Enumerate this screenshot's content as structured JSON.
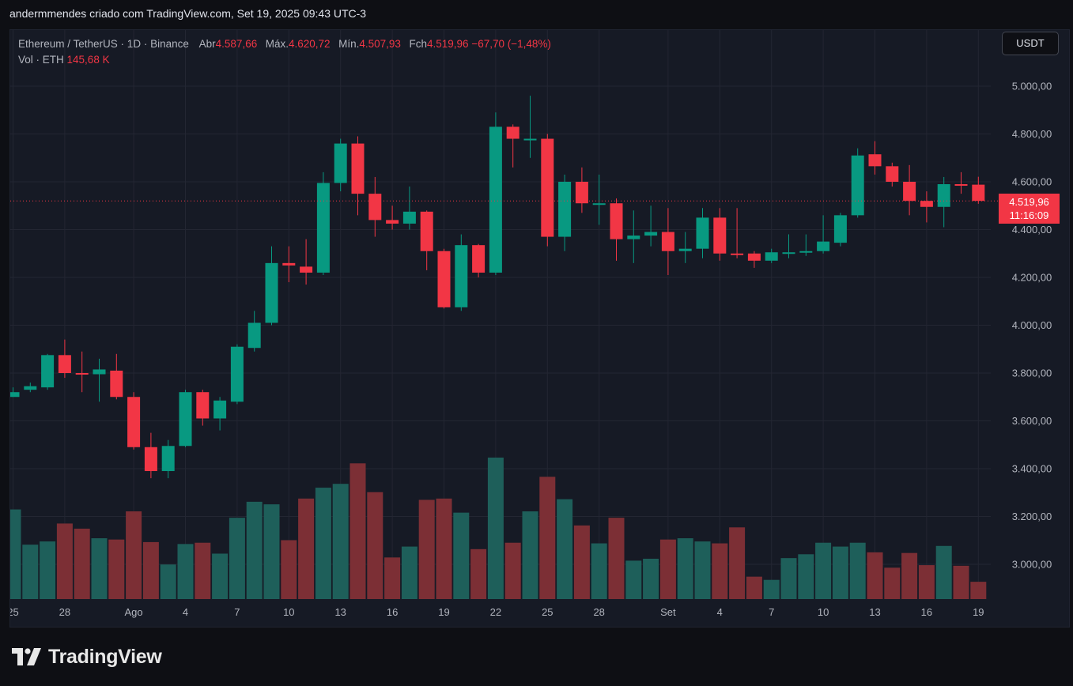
{
  "header": {
    "text": "andermmendes criado com TradingView.com, Set 19, 2025 09:43 UTC-3"
  },
  "legend": {
    "symbol": "Ethereum / TetherUS · 1D · Binance",
    "open_label": "Abr",
    "open": "4.587,66",
    "high_label": "Máx.",
    "high": "4.620,72",
    "low_label": "Mín.",
    "low": "4.507,93",
    "close_label": "Fch",
    "close": "4.519,96",
    "change": "−67,70 (−1,48%)",
    "volume_label": "Vol · ETH",
    "volume": "145,68 K"
  },
  "currency_button": "USDT",
  "price_tag": {
    "price": "4.519,96",
    "countdown": "11:16:09"
  },
  "brand": {
    "name": "TradingView"
  },
  "colors": {
    "up": "#089981",
    "down": "#f23645",
    "vol_up": "#1e5f5a",
    "vol_down": "#7c2f35",
    "background": "#161a25",
    "grid": "#232632"
  },
  "chart_data": {
    "type": "candlestick",
    "title": "Ethereum / TetherUS · 1D · Binance",
    "y_axis": {
      "ticks": [
        3000,
        3200,
        3400,
        3600,
        3800,
        4000,
        4200,
        4400,
        4600,
        4800,
        5000
      ],
      "tick_labels": [
        "3.000,00",
        "3.200,00",
        "3.400,00",
        "3.600,00",
        "3.800,00",
        "4.000,00",
        "4.200,00",
        "4.400,00",
        "4.600,00",
        "4.800,00",
        "5.000,00"
      ],
      "range": [
        2880,
        5130
      ]
    },
    "x_axis": {
      "ticks": [
        {
          "label": "25",
          "date": "2025-07-25"
        },
        {
          "label": "28",
          "date": "2025-07-28"
        },
        {
          "label": "Ago",
          "date": "2025-08-01"
        },
        {
          "label": "4",
          "date": "2025-08-04"
        },
        {
          "label": "7",
          "date": "2025-08-07"
        },
        {
          "label": "10",
          "date": "2025-08-10"
        },
        {
          "label": "13",
          "date": "2025-08-13"
        },
        {
          "label": "16",
          "date": "2025-08-16"
        },
        {
          "label": "19",
          "date": "2025-08-19"
        },
        {
          "label": "22",
          "date": "2025-08-22"
        },
        {
          "label": "25",
          "date": "2025-08-25"
        },
        {
          "label": "28",
          "date": "2025-08-28"
        },
        {
          "label": "Set",
          "date": "2025-09-01"
        },
        {
          "label": "4",
          "date": "2025-09-04"
        },
        {
          "label": "7",
          "date": "2025-09-07"
        },
        {
          "label": "10",
          "date": "2025-09-10"
        },
        {
          "label": "13",
          "date": "2025-09-13"
        },
        {
          "label": "16",
          "date": "2025-09-16"
        },
        {
          "label": "19",
          "date": "2025-09-19"
        }
      ]
    },
    "current_price": 4519.96,
    "candles": [
      {
        "date": "2025-07-25",
        "o": 3700,
        "h": 3740,
        "l": 3700,
        "c": 3720,
        "v": 140
      },
      {
        "date": "2025-07-26",
        "o": 3730,
        "h": 3760,
        "l": 3720,
        "c": 3745,
        "v": 85
      },
      {
        "date": "2025-07-27",
        "o": 3740,
        "h": 3880,
        "l": 3730,
        "c": 3875,
        "v": 90
      },
      {
        "date": "2025-07-28",
        "o": 3875,
        "h": 3940,
        "l": 3780,
        "c": 3800,
        "v": 118
      },
      {
        "date": "2025-07-29",
        "o": 3800,
        "h": 3890,
        "l": 3720,
        "c": 3795,
        "v": 110
      },
      {
        "date": "2025-07-30",
        "o": 3795,
        "h": 3860,
        "l": 3680,
        "c": 3815,
        "v": 95
      },
      {
        "date": "2025-07-31",
        "o": 3810,
        "h": 3880,
        "l": 3690,
        "c": 3700,
        "v": 93
      },
      {
        "date": "2025-08-01",
        "o": 3700,
        "h": 3720,
        "l": 3480,
        "c": 3490,
        "v": 137
      },
      {
        "date": "2025-08-02",
        "o": 3490,
        "h": 3550,
        "l": 3360,
        "c": 3390,
        "v": 89
      },
      {
        "date": "2025-08-03",
        "o": 3390,
        "h": 3520,
        "l": 3360,
        "c": 3495,
        "v": 54
      },
      {
        "date": "2025-08-04",
        "o": 3495,
        "h": 3730,
        "l": 3490,
        "c": 3720,
        "v": 86
      },
      {
        "date": "2025-08-05",
        "o": 3720,
        "h": 3730,
        "l": 3580,
        "c": 3610,
        "v": 88
      },
      {
        "date": "2025-08-06",
        "o": 3610,
        "h": 3700,
        "l": 3560,
        "c": 3685,
        "v": 71
      },
      {
        "date": "2025-08-07",
        "o": 3680,
        "h": 3920,
        "l": 3670,
        "c": 3910,
        "v": 127
      },
      {
        "date": "2025-08-08",
        "o": 3905,
        "h": 4060,
        "l": 3890,
        "c": 4010,
        "v": 152
      },
      {
        "date": "2025-08-09",
        "o": 4010,
        "h": 4330,
        "l": 4000,
        "c": 4260,
        "v": 148
      },
      {
        "date": "2025-08-10",
        "o": 4260,
        "h": 4330,
        "l": 4180,
        "c": 4250,
        "v": 92
      },
      {
        "date": "2025-08-11",
        "o": 4245,
        "h": 4360,
        "l": 4170,
        "c": 4220,
        "v": 157
      },
      {
        "date": "2025-08-12",
        "o": 4220,
        "h": 4640,
        "l": 4210,
        "c": 4595,
        "v": 174
      },
      {
        "date": "2025-08-13",
        "o": 4595,
        "h": 4780,
        "l": 4560,
        "c": 4760,
        "v": 180
      },
      {
        "date": "2025-08-14",
        "o": 4760,
        "h": 4790,
        "l": 4460,
        "c": 4550,
        "v": 212
      },
      {
        "date": "2025-08-15",
        "o": 4550,
        "h": 4620,
        "l": 4370,
        "c": 4440,
        "v": 167
      },
      {
        "date": "2025-08-16",
        "o": 4440,
        "h": 4500,
        "l": 4400,
        "c": 4425,
        "v": 65
      },
      {
        "date": "2025-08-17",
        "o": 4425,
        "h": 4580,
        "l": 4400,
        "c": 4475,
        "v": 82
      },
      {
        "date": "2025-08-18",
        "o": 4475,
        "h": 4480,
        "l": 4230,
        "c": 4310,
        "v": 155
      },
      {
        "date": "2025-08-19",
        "o": 4310,
        "h": 4320,
        "l": 4070,
        "c": 4075,
        "v": 157
      },
      {
        "date": "2025-08-20",
        "o": 4075,
        "h": 4380,
        "l": 4060,
        "c": 4335,
        "v": 135
      },
      {
        "date": "2025-08-21",
        "o": 4335,
        "h": 4340,
        "l": 4200,
        "c": 4220,
        "v": 78
      },
      {
        "date": "2025-08-22",
        "o": 4220,
        "h": 4890,
        "l": 4210,
        "c": 4830,
        "v": 221
      },
      {
        "date": "2025-08-23",
        "o": 4830,
        "h": 4840,
        "l": 4660,
        "c": 4780,
        "v": 88
      },
      {
        "date": "2025-08-24",
        "o": 4780,
        "h": 4960,
        "l": 4700,
        "c": 4780,
        "v": 137
      },
      {
        "date": "2025-08-25",
        "o": 4780,
        "h": 4800,
        "l": 4330,
        "c": 4370,
        "v": 191
      },
      {
        "date": "2025-08-26",
        "o": 4370,
        "h": 4630,
        "l": 4310,
        "c": 4600,
        "v": 156
      },
      {
        "date": "2025-08-27",
        "o": 4600,
        "h": 4660,
        "l": 4470,
        "c": 4510,
        "v": 115
      },
      {
        "date": "2025-08-28",
        "o": 4510,
        "h": 4630,
        "l": 4420,
        "c": 4510,
        "v": 87
      },
      {
        "date": "2025-08-29",
        "o": 4510,
        "h": 4530,
        "l": 4270,
        "c": 4360,
        "v": 127
      },
      {
        "date": "2025-08-30",
        "o": 4360,
        "h": 4480,
        "l": 4260,
        "c": 4375,
        "v": 60
      },
      {
        "date": "2025-08-31",
        "o": 4375,
        "h": 4500,
        "l": 4330,
        "c": 4390,
        "v": 63
      },
      {
        "date": "2025-09-01",
        "o": 4390,
        "h": 4490,
        "l": 4210,
        "c": 4310,
        "v": 93
      },
      {
        "date": "2025-09-02",
        "o": 4310,
        "h": 4390,
        "l": 4260,
        "c": 4320,
        "v": 95
      },
      {
        "date": "2025-09-03",
        "o": 4320,
        "h": 4490,
        "l": 4280,
        "c": 4450,
        "v": 90
      },
      {
        "date": "2025-09-04",
        "o": 4450,
        "h": 4490,
        "l": 4270,
        "c": 4300,
        "v": 87
      },
      {
        "date": "2025-09-05",
        "o": 4300,
        "h": 4490,
        "l": 4280,
        "c": 4295,
        "v": 112
      },
      {
        "date": "2025-09-06",
        "o": 4300,
        "h": 4310,
        "l": 4240,
        "c": 4270,
        "v": 35
      },
      {
        "date": "2025-09-07",
        "o": 4270,
        "h": 4320,
        "l": 4260,
        "c": 4305,
        "v": 30
      },
      {
        "date": "2025-09-08",
        "o": 4300,
        "h": 4380,
        "l": 4280,
        "c": 4305,
        "v": 64
      },
      {
        "date": "2025-09-09",
        "o": 4305,
        "h": 4380,
        "l": 4290,
        "c": 4310,
        "v": 70
      },
      {
        "date": "2025-09-10",
        "o": 4310,
        "h": 4460,
        "l": 4300,
        "c": 4350,
        "v": 88
      },
      {
        "date": "2025-09-11",
        "o": 4345,
        "h": 4470,
        "l": 4330,
        "c": 4460,
        "v": 82
      },
      {
        "date": "2025-09-12",
        "o": 4460,
        "h": 4740,
        "l": 4450,
        "c": 4710,
        "v": 88
      },
      {
        "date": "2025-09-13",
        "o": 4715,
        "h": 4770,
        "l": 4630,
        "c": 4665,
        "v": 73
      },
      {
        "date": "2025-09-14",
        "o": 4665,
        "h": 4680,
        "l": 4580,
        "c": 4600,
        "v": 49
      },
      {
        "date": "2025-09-15",
        "o": 4600,
        "h": 4670,
        "l": 4460,
        "c": 4520,
        "v": 72
      },
      {
        "date": "2025-09-16",
        "o": 4520,
        "h": 4560,
        "l": 4430,
        "c": 4495,
        "v": 53
      },
      {
        "date": "2025-09-17",
        "o": 4495,
        "h": 4620,
        "l": 4410,
        "c": 4590,
        "v": 83
      },
      {
        "date": "2025-09-18",
        "o": 4590,
        "h": 4640,
        "l": 4550,
        "c": 4588,
        "v": 52
      },
      {
        "date": "2025-09-19",
        "o": 4588,
        "h": 4621,
        "l": 4508,
        "c": 4520,
        "v": 27
      }
    ]
  }
}
